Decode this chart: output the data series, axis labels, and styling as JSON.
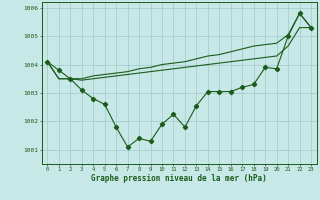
{
  "xlabel": "Graphe pression niveau de la mer (hPa)",
  "bg_color": "#c8e8e8",
  "grid_color": "#a0c8c8",
  "line_color": "#1a5c1a",
  "xmin": -0.5,
  "xmax": 23.5,
  "ymin": 1000.5,
  "ymax": 1006.2,
  "yticks": [
    1001,
    1002,
    1003,
    1004,
    1005,
    1006
  ],
  "xticks": [
    0,
    1,
    2,
    3,
    4,
    5,
    6,
    7,
    8,
    9,
    10,
    11,
    12,
    13,
    14,
    15,
    16,
    17,
    18,
    19,
    20,
    21,
    22,
    23
  ],
  "hours": [
    0,
    1,
    2,
    3,
    4,
    5,
    6,
    7,
    8,
    9,
    10,
    11,
    12,
    13,
    14,
    15,
    16,
    17,
    18,
    19,
    20,
    21,
    22,
    23
  ],
  "pressure_main": [
    1004.1,
    1003.8,
    1003.5,
    1003.1,
    1002.8,
    1002.6,
    1001.8,
    1001.1,
    1001.4,
    1001.3,
    1001.9,
    1002.25,
    1001.8,
    1002.55,
    1003.05,
    1003.05,
    1003.05,
    1003.2,
    1003.3,
    1003.9,
    1003.85,
    1005.0,
    1005.8,
    1005.3
  ],
  "pressure_line2": [
    1004.1,
    1003.5,
    1003.5,
    1003.5,
    1003.6,
    1003.65,
    1003.7,
    1003.75,
    1003.85,
    1003.9,
    1004.0,
    1004.05,
    1004.1,
    1004.2,
    1004.3,
    1004.35,
    1004.45,
    1004.55,
    1004.65,
    1004.7,
    1004.75,
    1005.05,
    1005.8,
    1005.3
  ],
  "pressure_line3": [
    1004.1,
    1003.5,
    1003.5,
    1003.45,
    1003.5,
    1003.55,
    1003.6,
    1003.65,
    1003.7,
    1003.75,
    1003.8,
    1003.85,
    1003.9,
    1003.95,
    1004.0,
    1004.05,
    1004.1,
    1004.15,
    1004.2,
    1004.25,
    1004.3,
    1004.65,
    1005.3,
    1005.3
  ]
}
